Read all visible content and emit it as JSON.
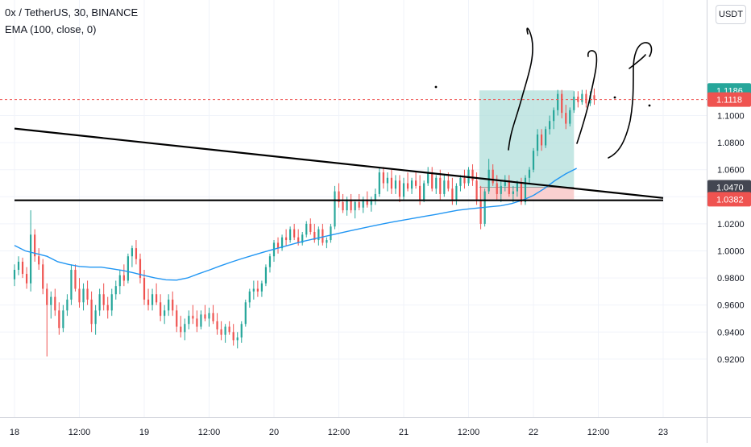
{
  "header": {
    "symbol_line": "0x / TetherUS, 30, BINANCE",
    "indicator_line": "EMA (100, close, 0)"
  },
  "currency_button": "USDT",
  "colors": {
    "up": "#26a69a",
    "down": "#ef5350",
    "ema": "#2196f3",
    "trendline": "#000000",
    "target_zone": "#b2dfdb",
    "stop_zone": "#f8c8c8",
    "grid": "#f0f3fa"
  },
  "chart_data": {
    "type": "candlestick",
    "title": "0x / TetherUS, 30, BINANCE",
    "indicator": "EMA (100, close, 0)",
    "ylim": [
      0.91,
      1.14
    ],
    "y_ticks": [
      1.1,
      1.08,
      1.06,
      1.04,
      1.02,
      1.0,
      0.98,
      0.96,
      0.94,
      0.92
    ],
    "y_tick_labels": [
      "1.1000",
      "1.0800",
      "1.0600",
      "",
      "1.0200",
      "1.0000",
      "0.9800",
      "0.9600",
      "0.9400",
      "0.9200"
    ],
    "x_ticks": [
      {
        "label": "18",
        "t": 0
      },
      {
        "label": "12:00",
        "t": 24
      },
      {
        "label": "19",
        "t": 48
      },
      {
        "label": "12:00",
        "t": 72
      },
      {
        "label": "20",
        "t": 96
      },
      {
        "label": "12:00",
        "t": 120
      },
      {
        "label": "21",
        "t": 144
      },
      {
        "label": "12:00",
        "t": 168
      },
      {
        "label": "22",
        "t": 192
      },
      {
        "label": "12:00",
        "t": 216
      },
      {
        "label": "23",
        "t": 240
      }
    ],
    "price_labels": [
      {
        "value": "1.1186",
        "price": 1.1186,
        "kind": "up"
      },
      {
        "value": "1.1118",
        "price": 1.1118,
        "kind": "down"
      },
      {
        "value": "1.0470",
        "price": 1.047,
        "kind": "dark"
      },
      {
        "value": "1.0382",
        "price": 1.0382,
        "kind": "down"
      }
    ],
    "current_price": 1.1118,
    "candles": [
      [
        0.979,
        0.99,
        0.974,
        0.986
      ],
      [
        0.986,
        0.996,
        0.982,
        0.992
      ],
      [
        0.992,
        0.995,
        0.98,
        0.983
      ],
      [
        0.983,
        0.988,
        0.972,
        0.976
      ],
      [
        0.976,
        1.03,
        0.97,
        1.012
      ],
      [
        1.012,
        1.016,
        0.992,
        0.996
      ],
      [
        0.996,
        1.002,
        0.986,
        0.99
      ],
      [
        0.99,
        0.994,
        0.968,
        0.972
      ],
      [
        0.972,
        0.976,
        0.922,
        0.96
      ],
      [
        0.96,
        0.97,
        0.95,
        0.966
      ],
      [
        0.966,
        0.972,
        0.952,
        0.956
      ],
      [
        0.956,
        0.962,
        0.938,
        0.943
      ],
      [
        0.943,
        0.96,
        0.94,
        0.956
      ],
      [
        0.956,
        0.968,
        0.952,
        0.964
      ],
      [
        0.964,
        0.99,
        0.96,
        0.986
      ],
      [
        0.986,
        0.99,
        0.97,
        0.972
      ],
      [
        0.972,
        0.98,
        0.958,
        0.962
      ],
      [
        0.962,
        0.976,
        0.956,
        0.972
      ],
      [
        0.972,
        0.978,
        0.96,
        0.964
      ],
      [
        0.964,
        0.97,
        0.94,
        0.946
      ],
      [
        0.946,
        0.96,
        0.938,
        0.956
      ],
      [
        0.956,
        0.972,
        0.952,
        0.968
      ],
      [
        0.968,
        0.976,
        0.956,
        0.96
      ],
      [
        0.96,
        0.966,
        0.95,
        0.956
      ],
      [
        0.956,
        0.972,
        0.952,
        0.968
      ],
      [
        0.968,
        0.978,
        0.964,
        0.974
      ],
      [
        0.974,
        0.986,
        0.968,
        0.982
      ],
      [
        0.982,
        0.99,
        0.974,
        0.978
      ],
      [
        0.978,
        0.998,
        0.976,
        0.996
      ],
      [
        0.996,
        1.004,
        0.988,
        1.002
      ],
      [
        1.002,
        1.008,
        0.99,
        0.994
      ],
      [
        0.994,
        0.998,
        0.976,
        0.98
      ],
      [
        0.98,
        0.986,
        0.96,
        0.964
      ],
      [
        0.964,
        0.972,
        0.956,
        0.96
      ],
      [
        0.96,
        0.972,
        0.956,
        0.968
      ],
      [
        0.968,
        0.976,
        0.96,
        0.962
      ],
      [
        0.962,
        0.968,
        0.948,
        0.952
      ],
      [
        0.952,
        0.96,
        0.946,
        0.956
      ],
      [
        0.956,
        0.968,
        0.952,
        0.964
      ],
      [
        0.964,
        0.97,
        0.952,
        0.956
      ],
      [
        0.956,
        0.96,
        0.94,
        0.944
      ],
      [
        0.944,
        0.952,
        0.936,
        0.94
      ],
      [
        0.94,
        0.95,
        0.934,
        0.946
      ],
      [
        0.946,
        0.956,
        0.942,
        0.952
      ],
      [
        0.952,
        0.96,
        0.946,
        0.95
      ],
      [
        0.95,
        0.956,
        0.94,
        0.944
      ],
      [
        0.944,
        0.956,
        0.942,
        0.953
      ],
      [
        0.953,
        0.96,
        0.948,
        0.95
      ],
      [
        0.95,
        0.958,
        0.944,
        0.954
      ],
      [
        0.954,
        0.96,
        0.946,
        0.948
      ],
      [
        0.948,
        0.954,
        0.938,
        0.942
      ],
      [
        0.942,
        0.948,
        0.934,
        0.938
      ],
      [
        0.938,
        0.946,
        0.932,
        0.944
      ],
      [
        0.944,
        0.948,
        0.938,
        0.94
      ],
      [
        0.94,
        0.946,
        0.93,
        0.934
      ],
      [
        0.934,
        0.94,
        0.928,
        0.936
      ],
      [
        0.936,
        0.948,
        0.932,
        0.946
      ],
      [
        0.946,
        0.964,
        0.944,
        0.962
      ],
      [
        0.962,
        0.972,
        0.958,
        0.97
      ],
      [
        0.97,
        0.978,
        0.964,
        0.972
      ],
      [
        0.972,
        0.978,
        0.966,
        0.97
      ],
      [
        0.97,
        0.978,
        0.966,
        0.976
      ],
      [
        0.976,
        0.99,
        0.974,
        0.988
      ],
      [
        0.988,
        0.998,
        0.984,
        0.996
      ],
      [
        0.996,
        1.008,
        0.992,
        1.006
      ],
      [
        1.006,
        1.01,
        0.998,
        1.002
      ],
      [
        1.002,
        1.012,
        1.0,
        1.01
      ],
      [
        1.01,
        1.016,
        1.004,
        1.008
      ],
      [
        1.008,
        1.018,
        1.006,
        1.016
      ],
      [
        1.016,
        1.02,
        1.008,
        1.01
      ],
      [
        1.01,
        1.016,
        1.004,
        1.006
      ],
      [
        1.006,
        1.014,
        1.004,
        1.012
      ],
      [
        1.012,
        1.022,
        1.01,
        1.02
      ],
      [
        1.02,
        1.024,
        1.012,
        1.014
      ],
      [
        1.014,
        1.02,
        1.006,
        1.008
      ],
      [
        1.008,
        1.018,
        1.004,
        1.016
      ],
      [
        1.016,
        1.02,
        1.004,
        1.006
      ],
      [
        1.006,
        1.01,
        1.002,
        1.008
      ],
      [
        1.008,
        1.02,
        1.006,
        1.018
      ],
      [
        1.018,
        1.048,
        1.016,
        1.044
      ],
      [
        1.044,
        1.05,
        1.032,
        1.036
      ],
      [
        1.036,
        1.042,
        1.028,
        1.03
      ],
      [
        1.03,
        1.04,
        1.026,
        1.038
      ],
      [
        1.038,
        1.042,
        1.028,
        1.03
      ],
      [
        1.03,
        1.038,
        1.024,
        1.036
      ],
      [
        1.036,
        1.042,
        1.03,
        1.032
      ],
      [
        1.032,
        1.04,
        1.028,
        1.038
      ],
      [
        1.038,
        1.044,
        1.032,
        1.034
      ],
      [
        1.034,
        1.04,
        1.029,
        1.038
      ],
      [
        1.038,
        1.046,
        1.034,
        1.042
      ],
      [
        1.042,
        1.062,
        1.04,
        1.058
      ],
      [
        1.058,
        1.062,
        1.046,
        1.05
      ],
      [
        1.05,
        1.058,
        1.044,
        1.054
      ],
      [
        1.054,
        1.06,
        1.042,
        1.046
      ],
      [
        1.046,
        1.056,
        1.042,
        1.052
      ],
      [
        1.052,
        1.056,
        1.036,
        1.04
      ],
      [
        1.04,
        1.054,
        1.038,
        1.05
      ],
      [
        1.05,
        1.058,
        1.044,
        1.046
      ],
      [
        1.046,
        1.054,
        1.042,
        1.052
      ],
      [
        1.052,
        1.058,
        1.046,
        1.048
      ],
      [
        1.048,
        1.056,
        1.034,
        1.038
      ],
      [
        1.038,
        1.052,
        1.036,
        1.05
      ],
      [
        1.05,
        1.062,
        1.048,
        1.058
      ],
      [
        1.058,
        1.062,
        1.044,
        1.046
      ],
      [
        1.046,
        1.056,
        1.042,
        1.054
      ],
      [
        1.054,
        1.06,
        1.038,
        1.042
      ],
      [
        1.042,
        1.056,
        1.04,
        1.052
      ],
      [
        1.052,
        1.058,
        1.044,
        1.046
      ],
      [
        1.046,
        1.054,
        1.034,
        1.038
      ],
      [
        1.038,
        1.05,
        1.034,
        1.048
      ],
      [
        1.048,
        1.056,
        1.044,
        1.054
      ],
      [
        1.054,
        1.06,
        1.046,
        1.05
      ],
      [
        1.05,
        1.062,
        1.048,
        1.06
      ],
      [
        1.06,
        1.064,
        1.048,
        1.052
      ],
      [
        1.052,
        1.058,
        1.034,
        1.038
      ],
      [
        1.038,
        1.048,
        1.016,
        1.02
      ],
      [
        1.02,
        1.046,
        1.018,
        1.044
      ],
      [
        1.044,
        1.068,
        1.042,
        1.06
      ],
      [
        1.06,
        1.064,
        1.048,
        1.05
      ],
      [
        1.05,
        1.056,
        1.038,
        1.042
      ],
      [
        1.042,
        1.052,
        1.036,
        1.048
      ],
      [
        1.048,
        1.056,
        1.044,
        1.052
      ],
      [
        1.052,
        1.056,
        1.04,
        1.042
      ],
      [
        1.042,
        1.048,
        1.036,
        1.044
      ],
      [
        1.044,
        1.052,
        1.04,
        1.05
      ],
      [
        1.05,
        1.054,
        1.034,
        1.036
      ],
      [
        1.036,
        1.056,
        1.034,
        1.054
      ],
      [
        1.054,
        1.062,
        1.05,
        1.06
      ],
      [
        1.06,
        1.076,
        1.058,
        1.074
      ],
      [
        1.074,
        1.09,
        1.07,
        1.086
      ],
      [
        1.086,
        1.09,
        1.074,
        1.078
      ],
      [
        1.078,
        1.092,
        1.076,
        1.09
      ],
      [
        1.09,
        1.1,
        1.086,
        1.096
      ],
      [
        1.096,
        1.106,
        1.09,
        1.104
      ],
      [
        1.104,
        1.119,
        1.1,
        1.116
      ],
      [
        1.116,
        1.119,
        1.098,
        1.102
      ],
      [
        1.102,
        1.108,
        1.09,
        1.094
      ],
      [
        1.094,
        1.106,
        1.092,
        1.104
      ],
      [
        1.104,
        1.118,
        1.102,
        1.114
      ],
      [
        1.114,
        1.118,
        1.106,
        1.11
      ],
      [
        1.11,
        1.119,
        1.108,
        1.116
      ],
      [
        1.116,
        1.119,
        1.106,
        1.109
      ],
      [
        1.109,
        1.118,
        1.107,
        1.115
      ],
      [
        1.115,
        1.12,
        1.108,
        1.1118
      ]
    ],
    "ema": [
      [
        0,
        1.004
      ],
      [
        4,
        1.0
      ],
      [
        8,
        0.998
      ],
      [
        12,
        0.996
      ],
      [
        16,
        0.992
      ],
      [
        20,
        0.99
      ],
      [
        24,
        0.9885
      ],
      [
        28,
        0.988
      ],
      [
        32,
        0.988
      ],
      [
        36,
        0.9868
      ],
      [
        40,
        0.9855
      ],
      [
        44,
        0.9838
      ],
      [
        48,
        0.9818
      ],
      [
        52,
        0.98
      ],
      [
        56,
        0.9786
      ],
      [
        60,
        0.9784
      ],
      [
        64,
        0.98
      ],
      [
        68,
        0.983
      ],
      [
        72,
        0.9858
      ],
      [
        76,
        0.9888
      ],
      [
        80,
        0.9916
      ],
      [
        84,
        0.9942
      ],
      [
        88,
        0.9966
      ],
      [
        92,
        0.999
      ],
      [
        96,
        1.0012
      ],
      [
        100,
        1.0034
      ],
      [
        104,
        1.0056
      ],
      [
        108,
        1.0076
      ],
      [
        112,
        1.0094
      ],
      [
        116,
        1.0112
      ],
      [
        120,
        1.013
      ],
      [
        124,
        1.0148
      ],
      [
        128,
        1.0165
      ],
      [
        132,
        1.0182
      ],
      [
        136,
        1.0198
      ],
      [
        140,
        1.0214
      ],
      [
        144,
        1.0228
      ],
      [
        148,
        1.0242
      ],
      [
        152,
        1.0256
      ],
      [
        156,
        1.027
      ],
      [
        160,
        1.0285
      ],
      [
        164,
        1.03
      ],
      [
        168,
        1.031
      ],
      [
        172,
        1.0318
      ],
      [
        176,
        1.0326
      ],
      [
        180,
        1.0334
      ],
      [
        184,
        1.035
      ],
      [
        188,
        1.0375
      ],
      [
        192,
        1.041
      ],
      [
        196,
        1.046
      ],
      [
        200,
        1.052
      ],
      [
        204,
        1.057
      ],
      [
        208,
        1.061
      ]
    ],
    "trendlines": [
      {
        "name": "descending",
        "t1": 0,
        "p1": 1.0904,
        "t2": 240,
        "p2": 1.0391
      },
      {
        "name": "horizontal",
        "t1": 0,
        "p1": 1.0374,
        "t2": 240,
        "p2": 1.0374
      }
    ],
    "position_box": {
      "t_start": 172,
      "t_end": 207,
      "target_top": 1.1186,
      "entry_top": 1.047,
      "entry_bottom": 1.0382
    }
  }
}
